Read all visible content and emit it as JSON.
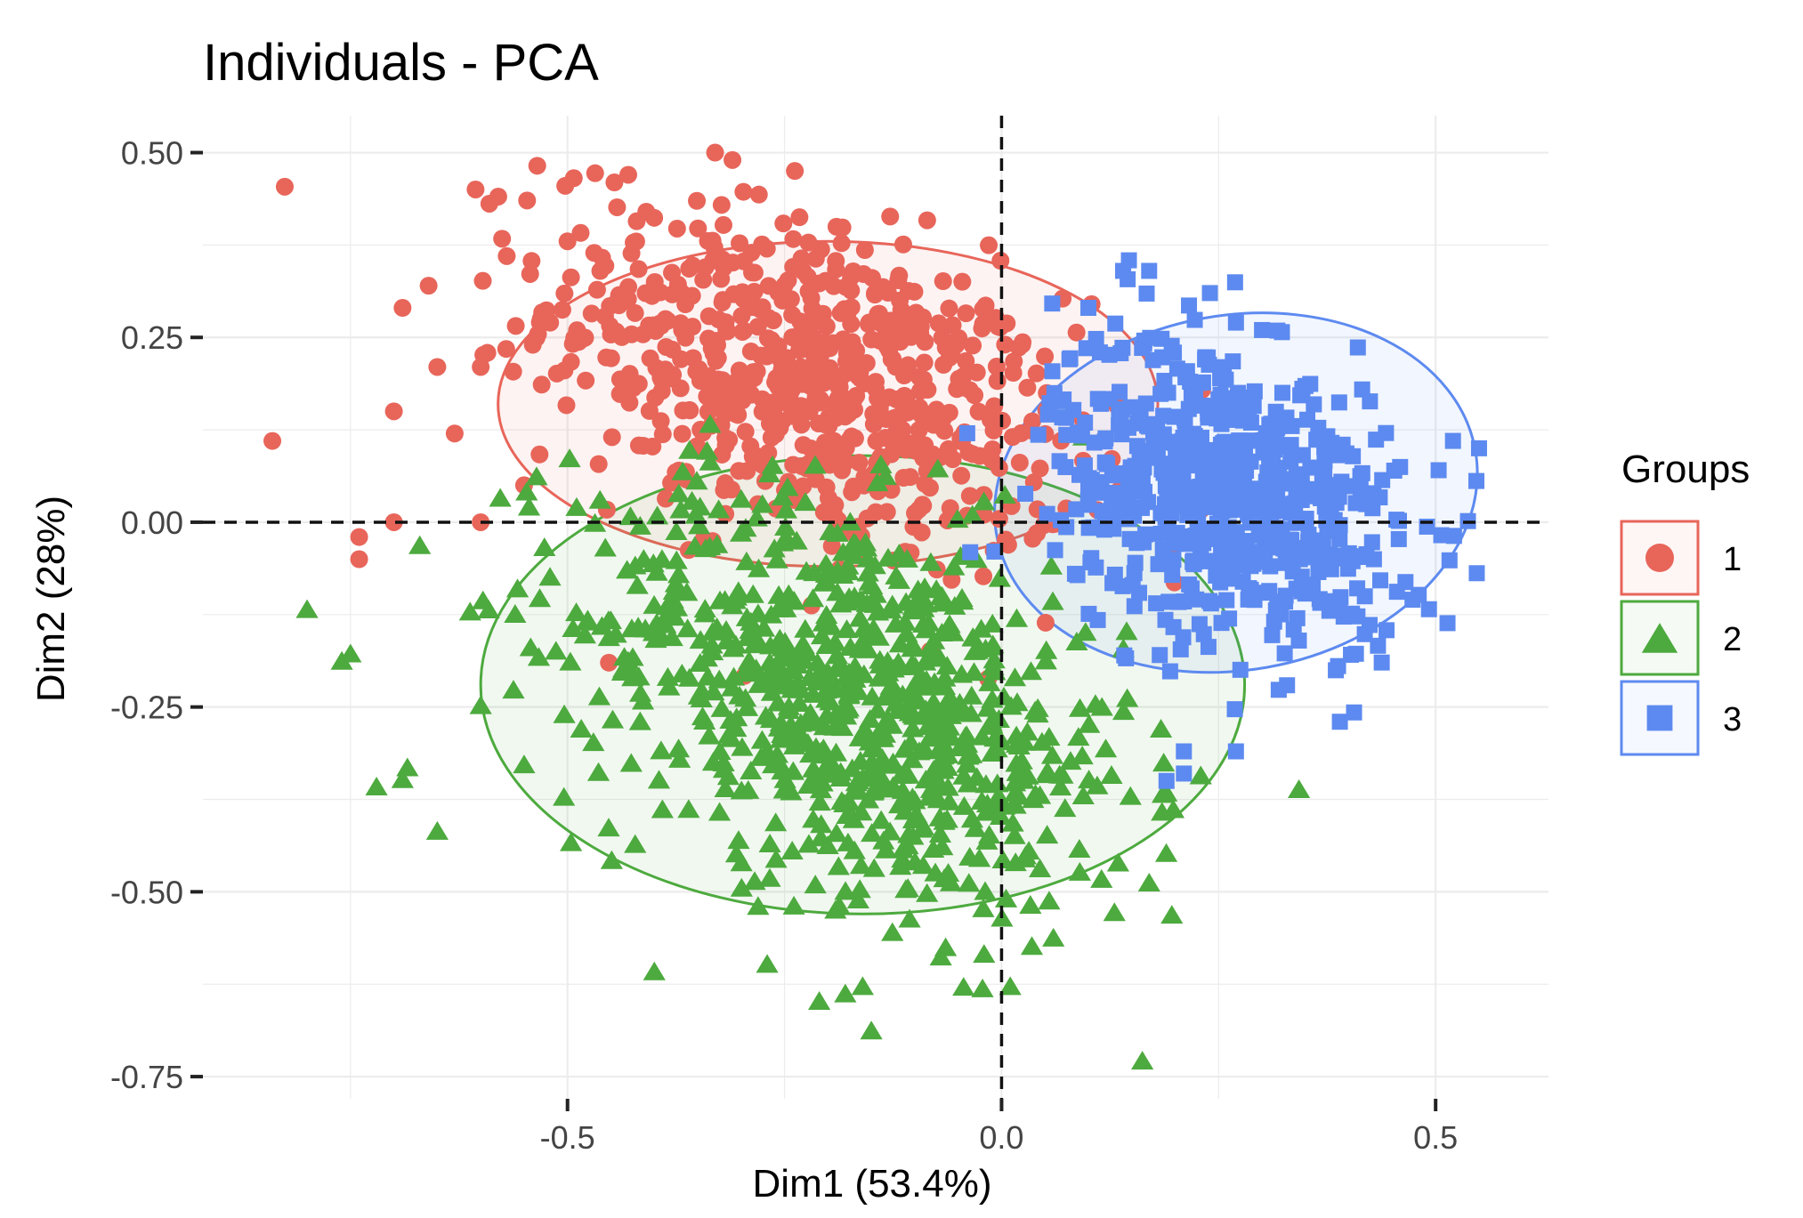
{
  "chart_data": {
    "type": "scatter",
    "title": "Individuals - PCA",
    "xlabel": "Dim1 (53.4%)",
    "ylabel": "Dim2 (28%)",
    "xlim": [
      -0.92,
      0.63
    ],
    "ylim": [
      -0.78,
      0.55
    ],
    "xticks": [
      -0.5,
      0.0,
      0.5
    ],
    "xtick_labels": [
      "-0.5",
      "0.0",
      "0.5"
    ],
    "yticks": [
      0.5,
      0.25,
      0.0,
      -0.25,
      -0.5,
      -0.75
    ],
    "ytick_labels": [
      "0.50",
      "0.25",
      "0.00",
      "-0.25",
      "-0.50",
      "-0.75"
    ],
    "reference_lines": {
      "x": 0.0,
      "y": 0.0,
      "style": "dashed"
    },
    "grid": true,
    "legend": {
      "title": "Groups",
      "position": "right",
      "entries": [
        "1",
        "2",
        "3"
      ]
    },
    "series": [
      {
        "name": "1",
        "marker": "circle",
        "color": "#E8655A",
        "ellipse": {
          "cx": -0.2,
          "cy": 0.16,
          "rx": 0.38,
          "ry": 0.22
        },
        "cloud": {
          "cx": -0.22,
          "cy": 0.19,
          "sx": 0.15,
          "sy": 0.11,
          "count": 700
        },
        "outliers": [
          [
            -0.84,
            0.11
          ],
          [
            -0.74,
            -0.02
          ],
          [
            -0.74,
            -0.05
          ],
          [
            -0.7,
            0.0
          ],
          [
            -0.69,
            0.29
          ],
          [
            -0.66,
            0.32
          ],
          [
            -0.65,
            0.21
          ],
          [
            -0.6,
            0.21
          ],
          [
            -0.57,
            0.36
          ],
          [
            -0.6,
            0.0
          ],
          [
            -0.54,
            0.24
          ],
          [
            -0.43,
            0.47
          ],
          [
            -0.33,
            0.5
          ],
          [
            -0.31,
            0.49
          ],
          [
            -0.7,
            0.15
          ],
          [
            -0.63,
            0.12
          ],
          [
            -0.55,
            0.05
          ],
          [
            -0.52,
            0.27
          ],
          [
            -0.5,
            0.38
          ]
        ]
      },
      {
        "name": "2",
        "marker": "triangle",
        "color": "#4DAA3E",
        "ellipse": {
          "cx": -0.16,
          "cy": -0.22,
          "rx": 0.44,
          "ry": 0.31
        },
        "cloud": {
          "cx": -0.17,
          "cy": -0.24,
          "sx": 0.16,
          "sy": 0.13,
          "count": 800
        },
        "outliers": [
          [
            -0.8,
            -0.12
          ],
          [
            -0.76,
            -0.19
          ],
          [
            -0.75,
            -0.18
          ],
          [
            -0.72,
            -0.36
          ],
          [
            -0.69,
            -0.35
          ],
          [
            -0.65,
            -0.42
          ],
          [
            -0.55,
            -0.33
          ],
          [
            -0.4,
            -0.61
          ],
          [
            -0.27,
            -0.6
          ],
          [
            -0.21,
            -0.65
          ],
          [
            -0.18,
            -0.64
          ],
          [
            -0.16,
            -0.63
          ],
          [
            -0.15,
            -0.69
          ],
          [
            -0.07,
            -0.59
          ],
          [
            0.01,
            -0.63
          ],
          [
            0.13,
            -0.53
          ],
          [
            0.17,
            -0.49
          ],
          [
            -0.6,
            -0.25
          ]
        ]
      },
      {
        "name": "3",
        "marker": "square",
        "color": "#5D8AF0",
        "ellipse": {
          "cx": 0.27,
          "cy": 0.04,
          "rx": 0.28,
          "ry": 0.24,
          "angle": -10
        },
        "cloud": {
          "cx": 0.26,
          "cy": 0.04,
          "sx": 0.1,
          "sy": 0.1,
          "count": 650
        },
        "outliers": [
          [
            0.14,
            0.34
          ],
          [
            0.17,
            0.34
          ],
          [
            0.24,
            0.31
          ],
          [
            0.27,
            0.27
          ],
          [
            0.3,
            0.26
          ],
          [
            0.1,
            0.29
          ],
          [
            0.55,
            0.1
          ],
          [
            0.52,
            0.11
          ],
          [
            0.27,
            -0.31
          ],
          [
            0.21,
            -0.31
          ],
          [
            0.19,
            -0.35
          ],
          [
            0.21,
            -0.34
          ]
        ]
      }
    ]
  }
}
